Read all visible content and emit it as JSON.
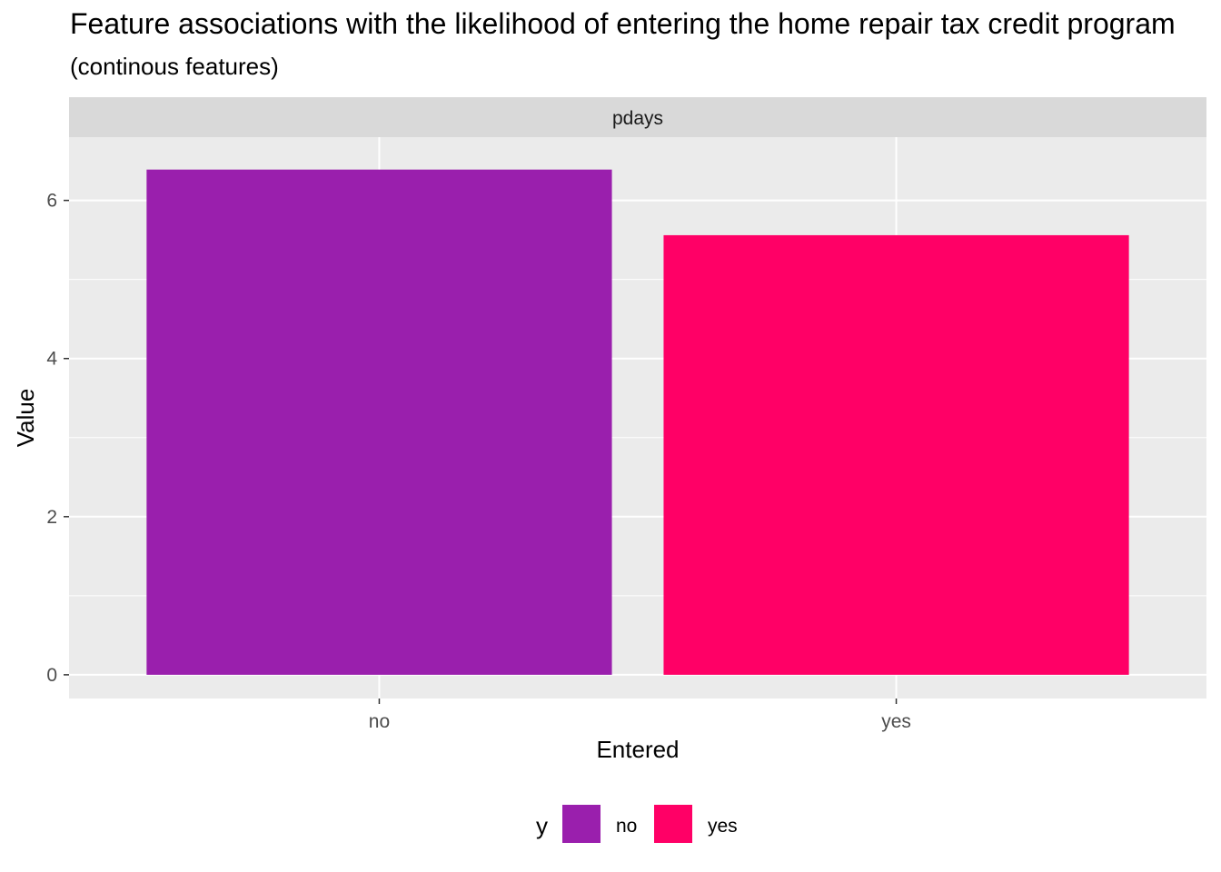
{
  "chart_data": {
    "type": "bar",
    "title": "Feature associations with the likelihood of entering the home repair tax credit program",
    "subtitle": "(continous features)",
    "facet": "pdays",
    "xlabel": "Entered",
    "ylabel": "Value",
    "categories": [
      "no",
      "yes"
    ],
    "values": [
      6.39,
      5.56
    ],
    "colors": [
      "#9A1FAD",
      "#FF0066"
    ],
    "ylim": [
      -0.3,
      6.8
    ],
    "yticks": [
      0,
      2,
      4,
      6
    ],
    "grid": true,
    "legend": {
      "position": "bottom",
      "title": "y",
      "entries": [
        "no",
        "yes"
      ]
    }
  }
}
